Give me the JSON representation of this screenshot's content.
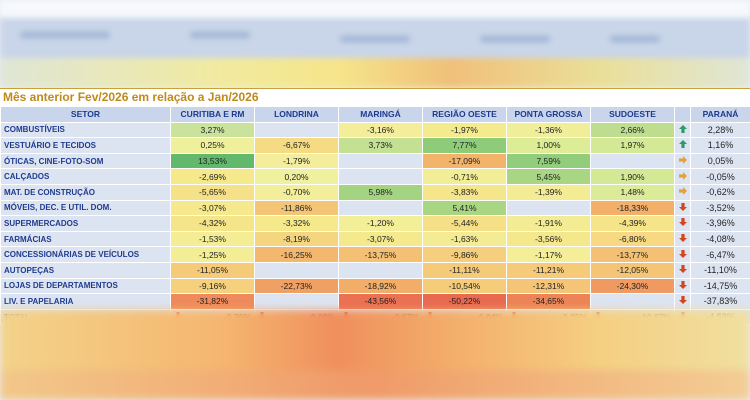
{
  "title": "Mês anterior Fev/2026 em relação a  Jan/2026",
  "headers": [
    "SETOR",
    "CURITIBA E RM",
    "LONDRINA",
    "MARINGÁ",
    "REGIÃO OESTE",
    "PONTA GROSSA",
    "SUDOESTE",
    "",
    "PARANÁ"
  ],
  "rows": [
    {
      "sector": "COMBUSTÍVEIS",
      "cells": [
        "3,27%",
        "",
        "-3,16%",
        "-1,97%",
        "-1,36%",
        "2,66%"
      ],
      "colors": [
        "#c9e39c",
        "#dde4f1",
        "#f4ee9a",
        "#f4ea8e",
        "#f1ee9a",
        "#bfdd8e"
      ],
      "arrow": "up",
      "parana": "2,28%"
    },
    {
      "sector": "VESTUÁRIO E TECIDOS",
      "cells": [
        "0,25%",
        "-6,67%",
        "3,73%",
        "7,77%",
        "1,00%",
        "1,97%"
      ],
      "colors": [
        "#eef09c",
        "#f5dc84",
        "#c4e193",
        "#8fcc7a",
        "#dcec97",
        "#d3e995"
      ],
      "arrow": "up",
      "parana": "1,16%"
    },
    {
      "sector": "ÓTICAS, CINE-FOTO-SOM",
      "cells": [
        "13,53%",
        "-1,79%",
        "",
        "-17,09%",
        "7,59%",
        ""
      ],
      "colors": [
        "#62b96b",
        "#f4ee9c",
        "#dde4f1",
        "#f2b36b",
        "#91cd7b",
        "#dde4f1"
      ],
      "arrow": "right",
      "parana": "0,05%"
    },
    {
      "sector": "CALÇADOS",
      "cells": [
        "-2,69%",
        "0,20%",
        "",
        "-0,71%",
        "5,45%",
        "1,90%"
      ],
      "colors": [
        "#f5e98c",
        "#f0f19e",
        "#dde4f1",
        "#f2ee98",
        "#a8d683",
        "#d4e996"
      ],
      "arrow": "right",
      "parana": "-0,05%"
    },
    {
      "sector": "MAT. DE CONSTRUÇÃO",
      "cells": [
        "-5,65%",
        "-0,70%",
        "5,98%",
        "-3,83%",
        "-1,39%",
        "1,48%"
      ],
      "colors": [
        "#f5e188",
        "#f2ee9a",
        "#a4d482",
        "#f5e58b",
        "#f3ec94",
        "#dbeb98"
      ],
      "arrow": "right",
      "parana": "-0,62%"
    },
    {
      "sector": "MÓVEIS, DEC. E UTIL. DOM.",
      "cells": [
        "-3,07%",
        "-11,86%",
        "",
        "5,41%",
        "",
        "-18,33%"
      ],
      "colors": [
        "#f6e98d",
        "#f4c577",
        "#dde4f1",
        "#a8d683",
        "#dde4f1",
        "#f2b06a"
      ],
      "arrow": "down",
      "parana": "-3,52%"
    },
    {
      "sector": "SUPERMERCADOS",
      "cells": [
        "-4,32%",
        "-3,32%",
        "-1,20%",
        "-5,44%",
        "-1,91%",
        "-4,39%"
      ],
      "colors": [
        "#f5e58a",
        "#f5e98c",
        "#f3ee98",
        "#f6e087",
        "#f4ec94",
        "#f6e48a"
      ],
      "arrow": "down",
      "parana": "-3,96%"
    },
    {
      "sector": "FARMÁCIAS",
      "cells": [
        "-1,53%",
        "-8,19%",
        "-3,07%",
        "-1,63%",
        "-3,56%",
        "-6,80%"
      ],
      "colors": [
        "#f4ed95",
        "#f5d680",
        "#f4e98c",
        "#f4ec94",
        "#f5e78b",
        "#f6d982"
      ],
      "arrow": "down",
      "parana": "-4,08%"
    },
    {
      "sector": "CONCESSIONÁRIAS DE VEÍCULOS",
      "cells": [
        "-1,25%",
        "-16,25%",
        "-13,75%",
        "-9,86%",
        "-1,17%",
        "-13,77%"
      ],
      "colors": [
        "#f3ed96",
        "#f3b76e",
        "#f4c174",
        "#f5cf7d",
        "#f3ee97",
        "#f4c174"
      ],
      "arrow": "down",
      "parana": "-6,47%"
    },
    {
      "sector": "AUTOPEÇAS",
      "cells": [
        "-11,05%",
        "",
        "",
        "-11,11%",
        "-11,21%",
        "-12,05%"
      ],
      "colors": [
        "#f5ca79",
        "#dde4f1",
        "#dde4f1",
        "#f5ca79",
        "#f5ca79",
        "#f5c577"
      ],
      "arrow": "down",
      "parana": "-11,10%"
    },
    {
      "sector": "LOJAS DE DEPARTAMENTOS",
      "cells": [
        "-9,16%",
        "-22,73%",
        "-18,92%",
        "-10,54%",
        "-12,31%",
        "-24,30%"
      ],
      "colors": [
        "#f5d17e",
        "#f0a063",
        "#f2ae68",
        "#f5cc7a",
        "#f5c577",
        "#f09a61"
      ],
      "arrow": "down",
      "parana": "-14,75%"
    },
    {
      "sector": "LIV. E PAPELARIA",
      "cells": [
        "-31,82%",
        "",
        "-43,56%",
        "-50,22%",
        "-34,65%",
        ""
      ],
      "colors": [
        "#ee8a5b",
        "#dde4f1",
        "#ea7153",
        "#e86a51",
        "#ec8457",
        "#dde4f1"
      ],
      "arrow": "down",
      "parana": "-37,83%"
    }
  ],
  "total": {
    "label": "TOTAL",
    "cells": [
      "-2,76%",
      "-9,09%",
      "-2,67%",
      "-6,04%",
      "-3,35%",
      "-10,87%"
    ],
    "parana": "-4,53%"
  },
  "icon_colors": {
    "up": "#2e9a6a",
    "right": "#e8a030",
    "down": "#d2451e"
  }
}
